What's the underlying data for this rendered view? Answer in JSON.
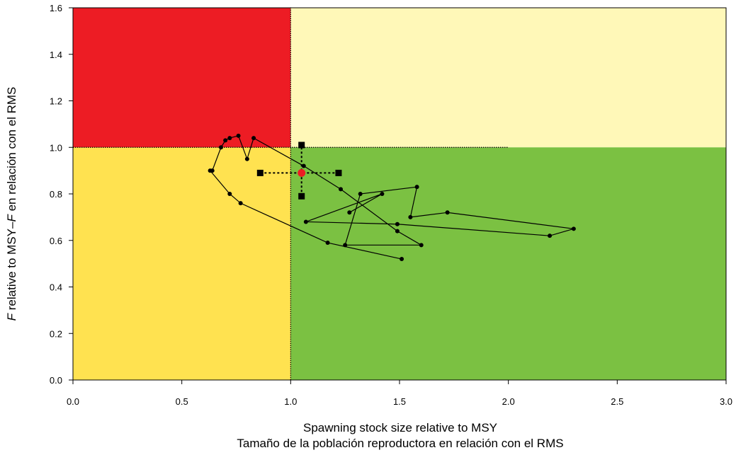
{
  "chart_data": {
    "type": "scatter",
    "title": "",
    "xlabel": [
      "Spawning stock size relative to MSY",
      "Tamaño de la población reproductora en relación con el RMS"
    ],
    "ylabel": {
      "italic_part": "F",
      "rest": " relative to MSY–",
      "italic_part2": "F",
      "rest2": " en relación con el RMS"
    },
    "xlim": [
      0,
      3
    ],
    "ylim": [
      0,
      1.6
    ],
    "xticks": [
      0,
      0.5,
      1,
      1.5,
      2,
      2.5,
      3
    ],
    "xtick_labels": [
      "0.0",
      "0.5",
      "1.0",
      "1.5",
      "2.0",
      "2.5",
      "3.0"
    ],
    "yticks": [
      0,
      0.2,
      0.4,
      0.6,
      0.8,
      1,
      1.2,
      1.4,
      1.6
    ],
    "ytick_labels": [
      "0.0",
      "0.2",
      "0.4",
      "0.6",
      "0.8",
      "1.0",
      "1.2",
      "1.4",
      "1.6"
    ],
    "quadrants": [
      {
        "name": "overfished-overfishing",
        "x": [
          0,
          1
        ],
        "y": [
          1,
          1.6
        ],
        "color": "#ED1C24"
      },
      {
        "name": "healthy-overfishing",
        "x": [
          1,
          3
        ],
        "y": [
          1,
          1.6
        ],
        "color": "#FFF8B8"
      },
      {
        "name": "overfished-not-overfishing",
        "x": [
          0,
          1
        ],
        "y": [
          0,
          1
        ],
        "color": "#FFE250"
      },
      {
        "name": "healthy",
        "x": [
          1,
          3
        ],
        "y": [
          0,
          1
        ],
        "color": "#7BC142"
      }
    ],
    "reference_lines": [
      {
        "orientation": "vertical",
        "x": 1,
        "y": [
          0,
          1.6
        ]
      },
      {
        "orientation": "horizontal",
        "y": 1,
        "x": [
          0,
          2
        ]
      }
    ],
    "trajectory": {
      "x": [
        1.51,
        1.17,
        0.77,
        0.72,
        0.63,
        0.64,
        0.68,
        0.7,
        0.72,
        0.76,
        0.8,
        0.83,
        1.06,
        1.23,
        1.49,
        1.6,
        1.25,
        1.32,
        1.58,
        1.55,
        1.72,
        2.3,
        2.19,
        1.49,
        1.07,
        1.42,
        1.27
      ],
      "y": [
        0.52,
        0.59,
        0.76,
        0.8,
        0.9,
        0.9,
        1.0,
        1.03,
        1.04,
        1.05,
        0.95,
        1.04,
        0.92,
        0.82,
        0.64,
        0.58,
        0.58,
        0.8,
        0.83,
        0.7,
        0.72,
        0.65,
        0.62,
        0.67,
        0.68,
        0.8,
        0.72
      ]
    },
    "current_point": {
      "x": 1.05,
      "y": 0.89,
      "color": "#ED1C24",
      "x_interval": [
        0.86,
        1.22
      ],
      "y_interval": [
        0.79,
        1.01
      ]
    },
    "colors": {
      "trajectory": "#000000",
      "current": "#ED1C24",
      "frame": "#000000"
    }
  }
}
